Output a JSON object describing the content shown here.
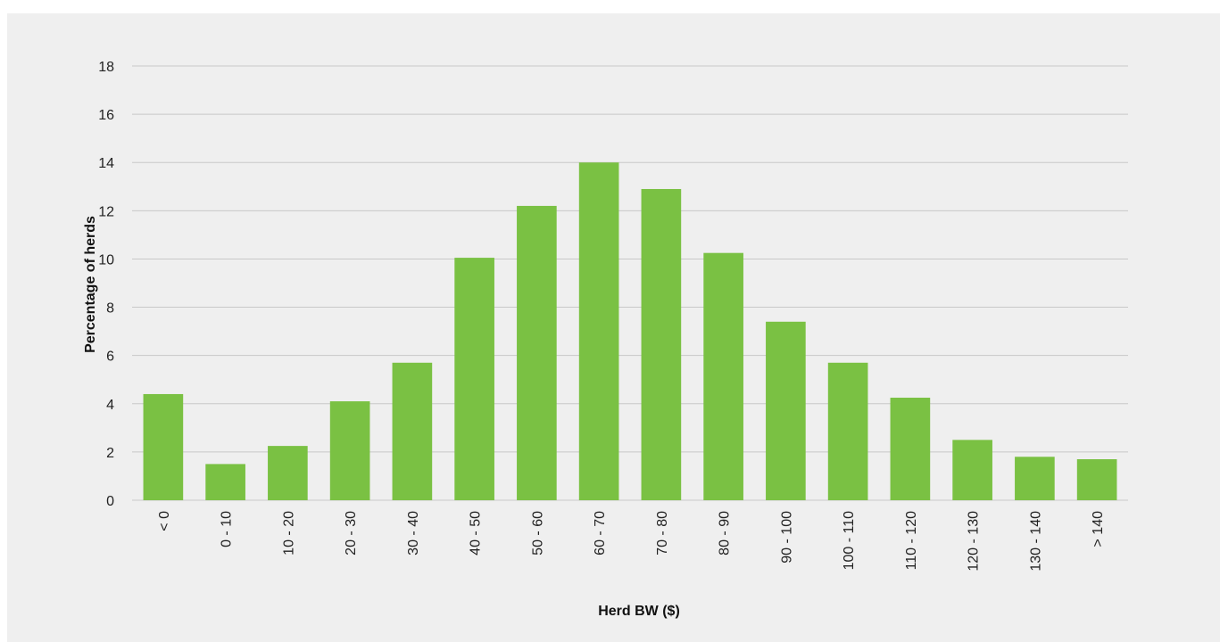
{
  "chart_data": {
    "type": "bar",
    "title": "",
    "xlabel": "Herd BW ($)",
    "ylabel": "Percentage of herds",
    "categories": [
      "< 0",
      "0 - 10",
      "10 - 20",
      "20 - 30",
      "30 - 40",
      "40 - 50",
      "50 - 60",
      "60 - 70",
      "70 - 80",
      "80 - 90",
      "90 - 100",
      "100 - 110",
      "110 - 120",
      "120 - 130",
      "130 - 140",
      "> 140"
    ],
    "values": [
      4.4,
      1.5,
      2.25,
      4.1,
      5.7,
      10.05,
      12.2,
      14.0,
      12.9,
      10.25,
      7.4,
      5.7,
      4.25,
      2.5,
      1.8,
      1.7
    ],
    "ylim": [
      0,
      18
    ],
    "yticks": [
      0,
      2,
      4,
      6,
      8,
      10,
      12,
      14,
      16,
      18
    ],
    "grid": true,
    "legend": "none",
    "colors": {
      "bar": "#7ac143",
      "grid": "#c8c8c8",
      "background": "#efefef"
    }
  }
}
